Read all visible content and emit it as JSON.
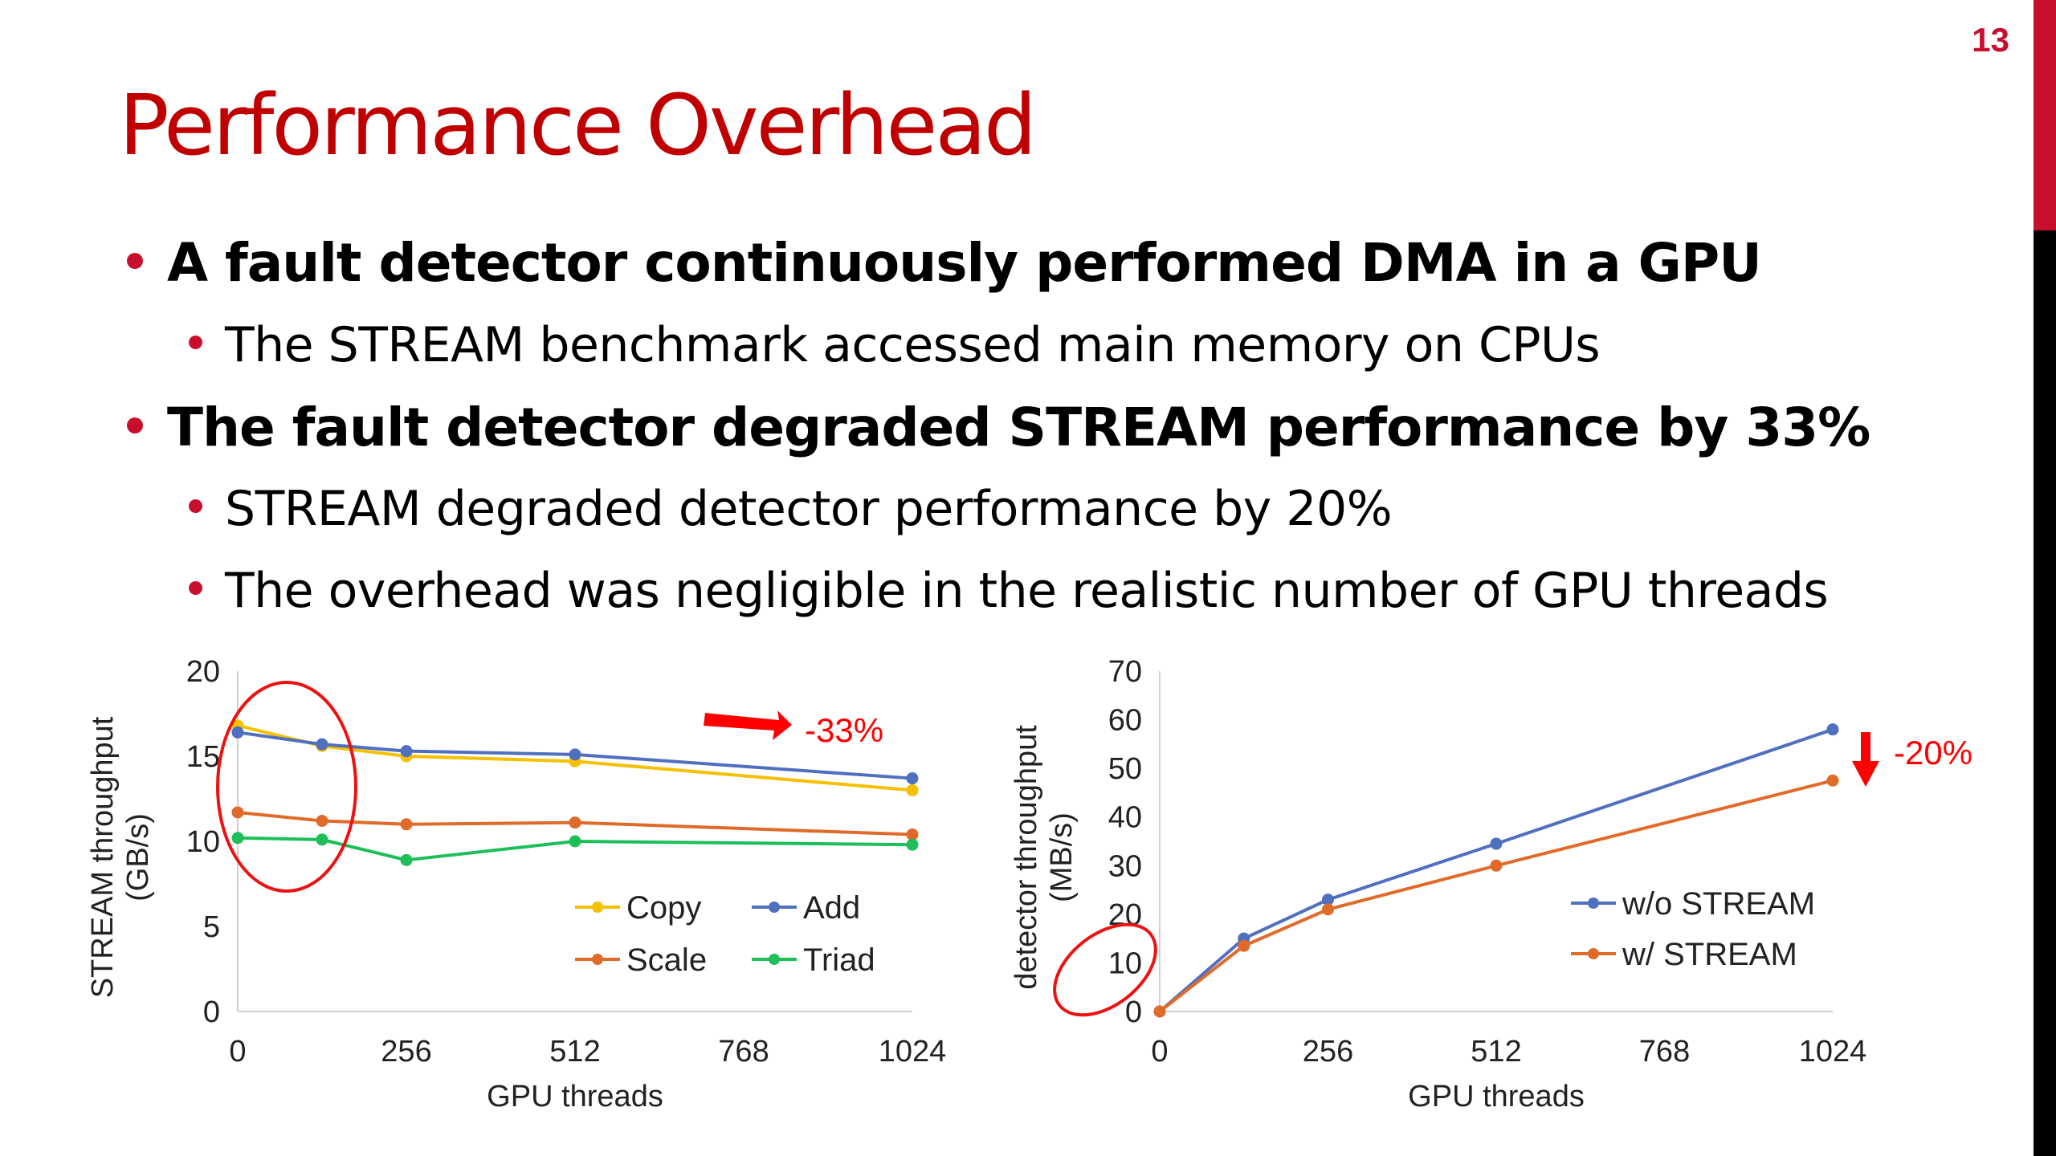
{
  "slide": {
    "page_number": "13",
    "title": "Performance Overhead",
    "bullets": [
      {
        "level": 1,
        "text": "A fault detector continuously performed DMA in a GPU"
      },
      {
        "level": 2,
        "text": "The STREAM benchmark accessed main memory on CPUs"
      },
      {
        "level": 1,
        "text": "The fault detector degraded STREAM performance by 33%"
      },
      {
        "level": 2,
        "text": "STREAM degraded detector performance by 20%"
      },
      {
        "level": 2,
        "text": "The overhead was negligible in the realistic number of GPU threads"
      }
    ],
    "colors": {
      "accent": "#c8102e",
      "title": "#c00000",
      "annotation": "#ff0000"
    }
  },
  "chart_data": [
    {
      "type": "line",
      "xlabel": "GPU threads",
      "ylabel": "STREAM throughput (GB/s)",
      "ylabel_lines": [
        "STREAM throughput",
        "(GB/s)"
      ],
      "xlim": [
        0,
        1024
      ],
      "ylim": [
        0,
        20
      ],
      "xticks": [
        0,
        256,
        512,
        768,
        1024
      ],
      "yticks": [
        0,
        5,
        10,
        15,
        20
      ],
      "legend_position": "bottom-right",
      "annotation": "-33%",
      "series": [
        {
          "name": "Copy",
          "color": "#f5c000",
          "x": [
            0,
            128,
            256,
            512,
            1024
          ],
          "y": [
            16.8,
            15.6,
            15.0,
            14.7,
            13.0
          ]
        },
        {
          "name": "Scale",
          "color": "#e06a2a",
          "x": [
            0,
            128,
            256,
            512,
            1024
          ],
          "y": [
            11.7,
            11.2,
            11.0,
            11.1,
            10.4
          ]
        },
        {
          "name": "Add",
          "color": "#4f6fbf",
          "x": [
            0,
            128,
            256,
            512,
            1024
          ],
          "y": [
            16.4,
            15.7,
            15.3,
            15.1,
            13.7
          ]
        },
        {
          "name": "Triad",
          "color": "#1ebf5a",
          "x": [
            0,
            128,
            256,
            512,
            1024
          ],
          "y": [
            10.2,
            10.1,
            8.9,
            10.0,
            9.8
          ]
        }
      ]
    },
    {
      "type": "line",
      "xlabel": "GPU threads",
      "ylabel": "detector throughput (MB/s)",
      "ylabel_lines": [
        "detector throughput",
        "(MB/s)"
      ],
      "xlim": [
        0,
        1024
      ],
      "ylim": [
        0,
        70
      ],
      "xticks": [
        0,
        256,
        512,
        768,
        1024
      ],
      "yticks": [
        0,
        10,
        20,
        30,
        40,
        50,
        60,
        70
      ],
      "legend_position": "center-right",
      "annotation": "-20%",
      "series": [
        {
          "name": "w/o STREAM",
          "color": "#4f6fbf",
          "x": [
            0,
            128,
            256,
            512,
            1024
          ],
          "y": [
            0,
            15,
            23,
            34.5,
            58
          ]
        },
        {
          "name": "w/ STREAM",
          "color": "#e06a2a",
          "x": [
            0,
            128,
            256,
            512,
            1024
          ],
          "y": [
            0,
            13.5,
            21,
            30,
            47.5
          ]
        }
      ]
    }
  ]
}
